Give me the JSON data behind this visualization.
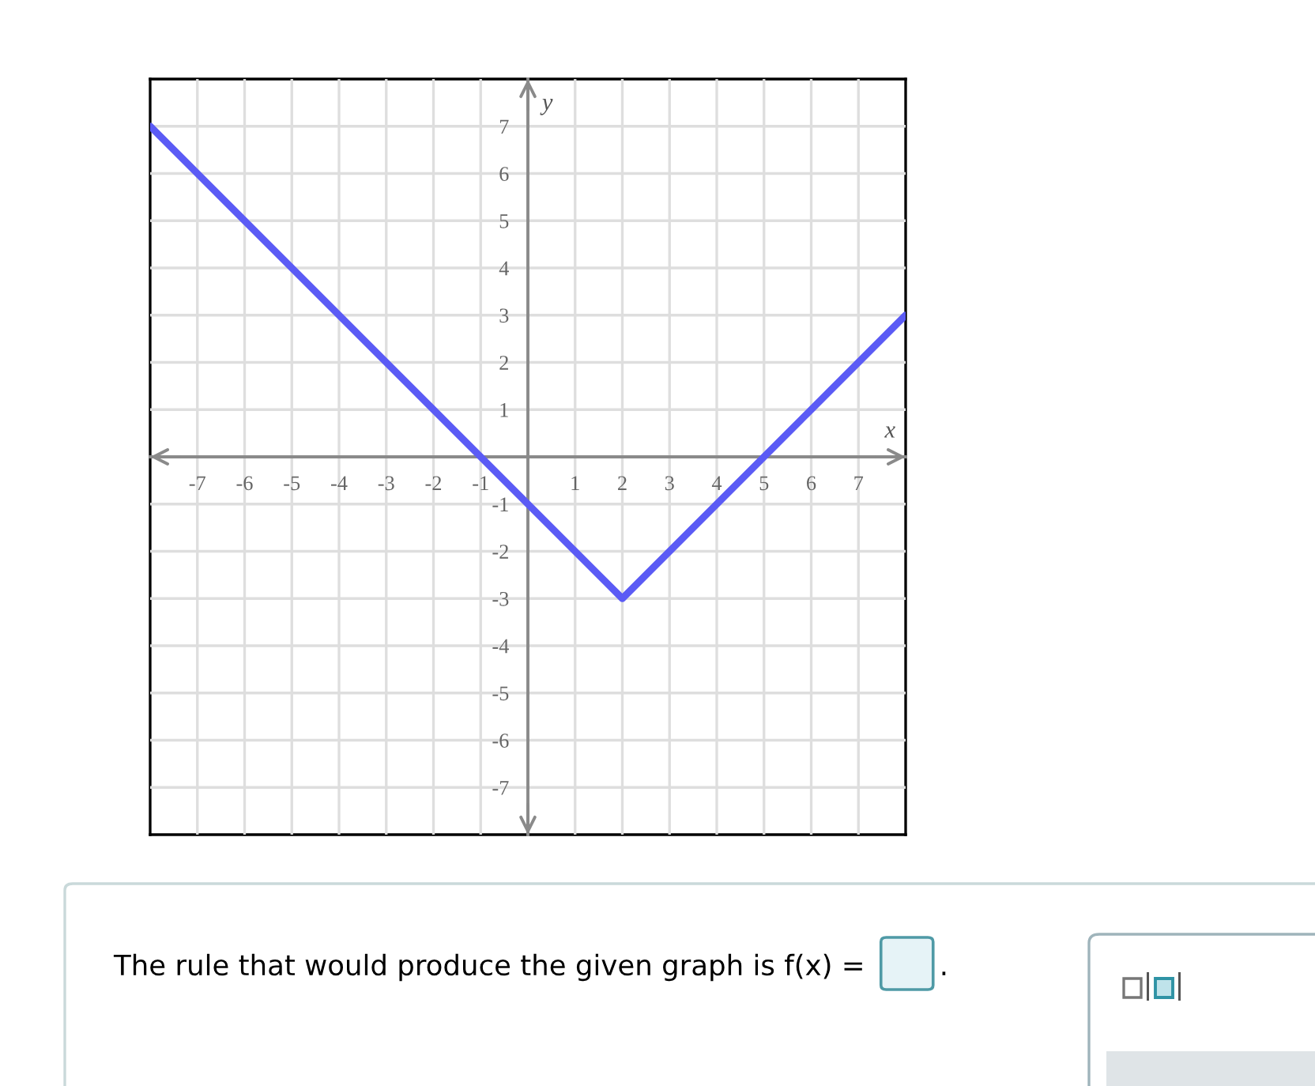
{
  "chart_data": {
    "type": "line",
    "xlabel": "x",
    "ylabel": "y",
    "series": [
      {
        "color": "#5b5bf5",
        "x": [
          -8,
          2,
          8
        ],
        "values": [
          7,
          -3,
          3
        ]
      }
    ],
    "xlim": [
      -8,
      8
    ],
    "ylim": [
      -8,
      8
    ],
    "xticks": [
      -7,
      -6,
      -5,
      -4,
      -3,
      -2,
      -1,
      1,
      2,
      3,
      4,
      5,
      6,
      7
    ],
    "yticks": [
      -7,
      -6,
      -5,
      -4,
      -3,
      -2,
      -1,
      1,
      2,
      3,
      4,
      5,
      6,
      7
    ],
    "grid": true,
    "annotations": [
      "The rule that would produce the given graph is f(x) =",
      "."
    ]
  }
}
